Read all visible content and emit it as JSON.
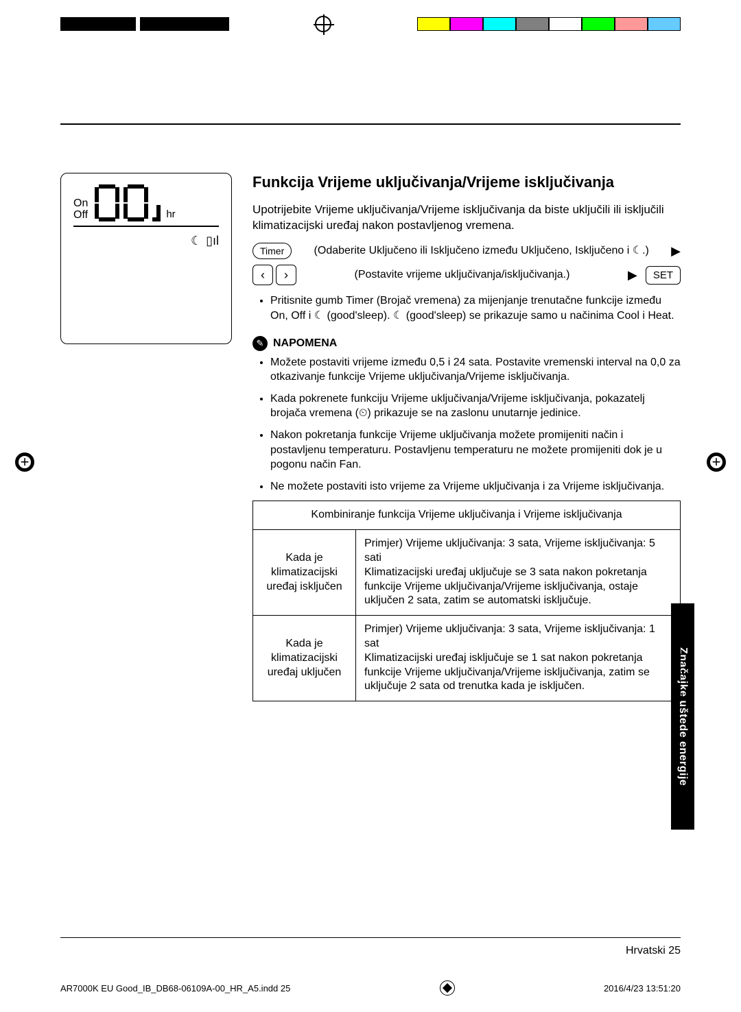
{
  "registration": {
    "colors": [
      "#ffff00",
      "#ff00ff",
      "#00ffff",
      "#808080",
      "#ffffff",
      "#00ff00",
      "#ff9999",
      "#66ccff"
    ]
  },
  "display": {
    "on": "On",
    "off": "Off",
    "hr": "hr"
  },
  "title": "Funkcija Vrijeme uključivanja/Vrijeme isključivanja",
  "intro": "Upotrijebite Vrijeme uključivanja/Vrijeme isključivanja da biste uključili ili isključili klimatizacijski uređaj nakon postavljenog vremena.",
  "steps": {
    "timer_label": "Timer",
    "step1": "(Odaberite Uključeno ili Isključeno između Uključeno, Isključeno i ☾.)",
    "step2": "(Postavite vrijeme uključivanja/isključivanja.)",
    "set_label": "SET",
    "left": "‹",
    "right": "›",
    "arrow": "▶"
  },
  "sub_bullets": [
    "Pritisnite gumb  Timer  (Brojač vremena) za mijenjanje trenutačne funkcije između On, Off i ☾ (good'sleep). ☾ (good'sleep) se prikazuje samo u načinima Cool i Heat."
  ],
  "note_title": "NAPOMENA",
  "notes": [
    "Možete postaviti vrijeme između 0,5 i 24 sata. Postavite vremenski interval na 0,0 za otkazivanje funkcije Vrijeme uključivanja/Vrijeme isključivanja.",
    "Kada pokrenete funkciju Vrijeme uključivanja/Vrijeme isključivanja, pokazatelj brojača vremena (⏲) prikazuje se na zaslonu unutarnje jedinice.",
    "Nakon pokretanja funkcije Vrijeme uključivanja možete promijeniti način i postavljenu temperaturu. Postavljenu temperaturu ne možete promijeniti dok je u pogonu način Fan.",
    "Ne možete postaviti isto vrijeme za Vrijeme uključivanja i za Vrijeme isključivanja."
  ],
  "table": {
    "header": "Kombiniranje funkcija Vrijeme uključivanja i Vrijeme isključivanja",
    "rows": [
      {
        "left": "Kada je klimatizacijski uređaj isključen",
        "right": "Primjer) Vrijeme uključivanja: 3 sata, Vrijeme isključivanja: 5 sati\nKlimatizacijski uređaj uključuje se 3 sata nakon pokretanja funkcije Vrijeme uključivanja/Vrijeme isključivanja, ostaje uključen 2 sata, zatim se automatski isključuje."
      },
      {
        "left": "Kada je klimatizacijski uređaj uključen",
        "right": "Primjer) Vrijeme uključivanja: 3 sata, Vrijeme isključivanja: 1 sat\nKlimatizacijski uređaj isključuje se 1 sat nakon pokretanja funkcije Vrijeme uključivanja/Vrijeme isključivanja, zatim se uključuje 2 sata od trenutka kada je isključen."
      }
    ]
  },
  "side_tab": "Značajke uštede energije",
  "footer": {
    "lang": "Hrvatski",
    "page": "25"
  },
  "print_footer": {
    "left": "AR7000K EU Good_IB_DB68-06109A-00_HR_A5.indd   25",
    "right": "2016/4/23   13:51:20"
  }
}
